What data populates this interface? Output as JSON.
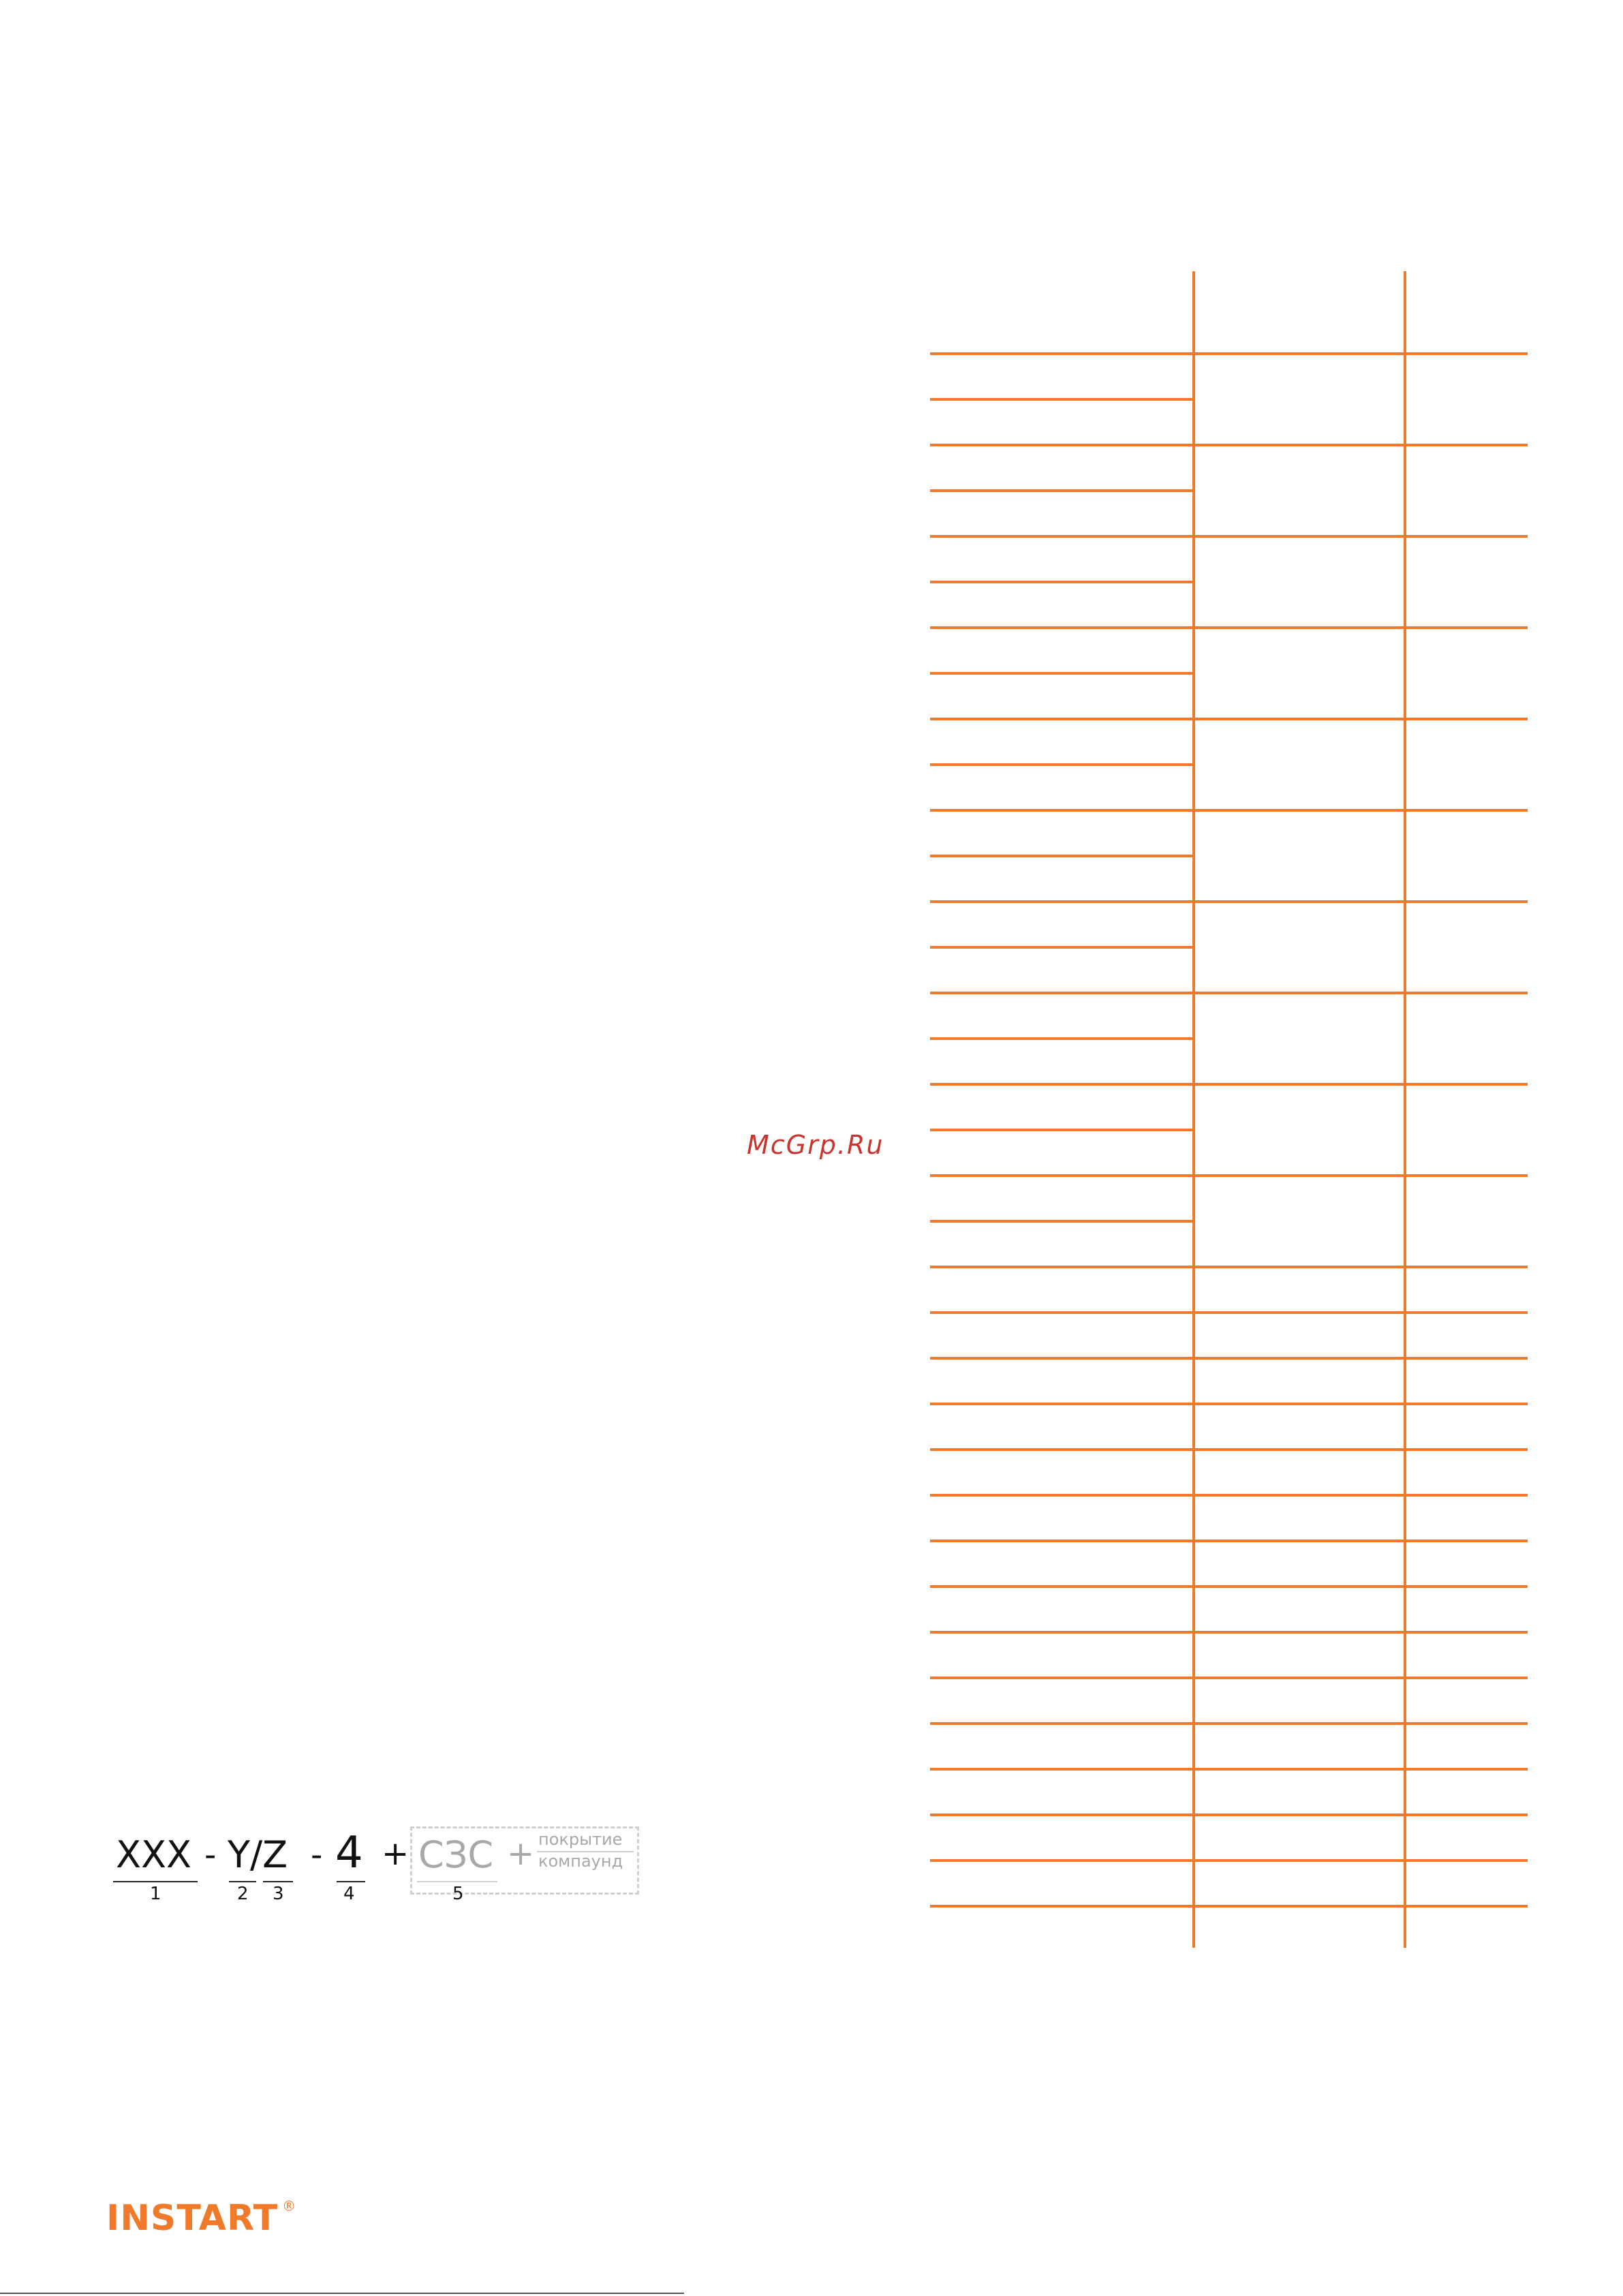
{
  "watermark": "McGrp.Ru",
  "order_code": {
    "part1": "XXX",
    "sep1": "-",
    "part2": "Y/Z",
    "sep2": "-",
    "part4": "4",
    "plus1": "+",
    "part5": "СЗС",
    "plus2": "+",
    "coating_line1": "покрытие",
    "coating_line2": "компаунд",
    "idx1": "1",
    "idx2": "2",
    "idx3": "3",
    "idx4": "4",
    "idx5": "5"
  },
  "logo": {
    "text": "INSTART",
    "mark": "®"
  },
  "colors": {
    "accent": "#f07a2a",
    "watermark": "#c8352e",
    "muted": "#a8a8a8"
  }
}
